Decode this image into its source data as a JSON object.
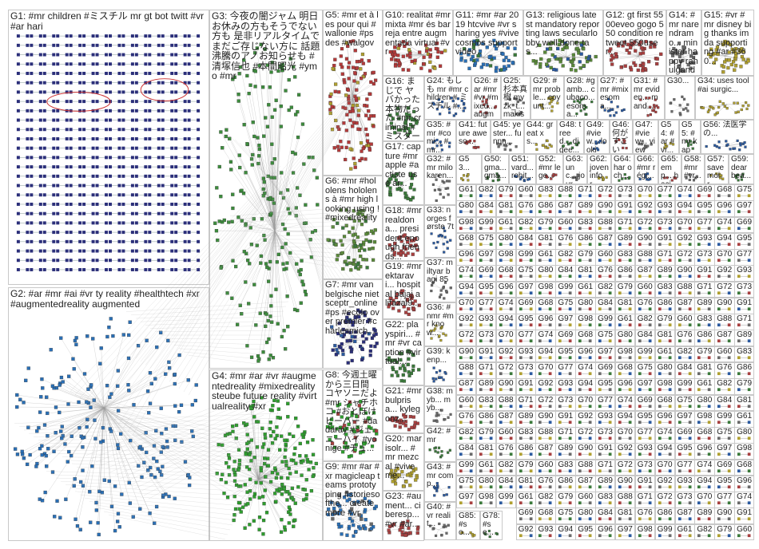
{
  "colors": {
    "g1": "#2b2f7a",
    "g2": "#2a6fb5",
    "g3": "#3d8c3d",
    "g4": "#2e9e2e",
    "g5": "#b33a3a",
    "g6": "#5a8a3a",
    "edge": "#9a9a9a",
    "mixed": [
      "#3b7a3b",
      "#2b5aa0",
      "#a84040",
      "#6a6a6a",
      "#b0a030"
    ]
  },
  "groups": [
    {
      "id": "G1",
      "label": "G1: #mr children #ミスチル mr gt bot twitt #vr #ar hari"
    },
    {
      "id": "G2",
      "label": "G2: #ar #mr #ai #vr ty reality #healthtech #xr #augmentedreality augmented"
    },
    {
      "id": "G3",
      "label": "G3: 今夜の闇ジャム 明日お休みの方もそうでない方も 是非リアルタイムでまだご存じない方に 話題沸騰のアノお知らせも #清塚信也 #本間昭光 #ymo #mr"
    },
    {
      "id": "G4",
      "label": "G4: #mr #ar #vr #augmentedreality #mixedreality steube future reality #virtualreality #xr"
    },
    {
      "id": "G5",
      "label": "G5: #mr et à les pour qui #wallonie #ps des #walgov"
    },
    {
      "id": "G6",
      "label": "G6: #mr #hololens hololens à #mr high looking using ! #mixedreality"
    },
    {
      "id": "G7",
      "label": "G7: #mr van belgische niet sceptr_online #ps #ecolo over premier #charlesmich..."
    },
    {
      "id": "G8",
      "label": "G8: 今週土曜から三日間 コヤソニだよ #mr シャチホコ #おとぼけビーバー #dadaray #ジェニーハイ #yonige #チュ..."
    },
    {
      "id": "G9",
      "label": "G9: #mr #ar #xr magicleap teams prototyping #storiesofthe... create more #vr"
    },
    {
      "id": "G10",
      "label": "G10: realitat #mr mixta #mr és barreja entre augmentada virtual #vr"
    },
    {
      "id": "G11",
      "label": "G11: #mr #ar 2019 htcvive #vr sharing yes #vivecosmos support video"
    },
    {
      "id": "G13",
      "label": "G13: religious latest mandatory reporting laws secularlobby well done tas..."
    },
    {
      "id": "G12",
      "label": "G12: gt first 5500eveo gogo 550 condition retweet 550user..."
    },
    {
      "id": "G14",
      "label": "G14: #mr narendramo... minister happy rahulgandhi u prime..."
    },
    {
      "id": "G15",
      "label": "G15: #vr #mr disney big thanks imda supporting #ar #360..."
    },
    {
      "id": "G16",
      "label": "G16: まじで ヤバかった 本物だった #mr criminal #ミスターク..."
    },
    {
      "id": "G24",
      "label": "G24: もしも mr #mr children # ミスチル #..."
    },
    {
      "id": "G26",
      "label": "G26: #ar #mr #vr #mixed... augme..."
    },
    {
      "id": "G25",
      "label": "G25: 杉本真樹 myzk_t... makisu..."
    },
    {
      "id": "G29",
      "label": "G29: #mr proble... coyunt..."
    },
    {
      "id": "G28",
      "label": "G28: #gamb... cubaco... esoma..."
    },
    {
      "id": "G27",
      "label": "G27: #mr #mix esoma..."
    },
    {
      "id": "G31",
      "label": "G31: #mr eviden... mand..."
    },
    {
      "id": "G30",
      "label": "G30..."
    },
    {
      "id": "G34",
      "label": "G34: uses tool #ai surgic..."
    },
    {
      "id": "G17",
      "label": "G17: capture #mr apple #actiste use ar..."
    },
    {
      "id": "G35",
      "label": "G35: #mr #comi... #mr..."
    },
    {
      "id": "G41",
      "label": "G41: future aweso..."
    },
    {
      "id": "G45",
      "label": "G45: yester... funnn..."
    },
    {
      "id": "G44",
      "label": "G44: great x s..."
    },
    {
      "id": "G48",
      "label": "G48: treed... djgee..."
    },
    {
      "id": "G49",
      "label": "G49: #view... lookin..."
    },
    {
      "id": "G46",
      "label": "G46: 何がすごいっ..."
    },
    {
      "id": "G47",
      "label": "G47: #view... viewc..."
    },
    {
      "id": "G54",
      "label": "G54: #ar #vr..."
    },
    {
      "id": "G55",
      "label": "G55: #mr kaps..."
    },
    {
      "id": "G56",
      "label": "G56: 法医学の..."
    },
    {
      "id": "G18",
      "label": "G18: #mr realdona... president enough friends..."
    },
    {
      "id": "G32",
      "label": "G32: #mr milo karen..."
    },
    {
      "id": "G53",
      "label": "G53..."
    },
    {
      "id": "G50",
      "label": "G50: gma... gma..."
    },
    {
      "id": "G51",
      "label": "G51: vard... rohit..."
    },
    {
      "id": "G52",
      "label": "G52: #mr lege..."
    },
    {
      "id": "G63",
      "label": "G63: unc... jour..."
    },
    {
      "id": "G62",
      "label": "G62: joven infor..."
    },
    {
      "id": "G64",
      "label": "G64: har och..."
    },
    {
      "id": "G66",
      "label": "G66: #mr régi..."
    },
    {
      "id": "G65",
      "label": "G65: emp... haci..."
    },
    {
      "id": "G58",
      "label": "G58: #mr #vr..."
    },
    {
      "id": "G57",
      "label": "G57: save moir..."
    },
    {
      "id": "G59",
      "label": "G59: dear bea..."
    },
    {
      "id": "G33",
      "label": "G33: norges første 7t"
    },
    {
      "id": "G19",
      "label": "G19: #mr ektaravi... hospital bajaj alifazal9..."
    },
    {
      "id": "G37",
      "label": "G37: miltyar bagi 85"
    },
    {
      "id": "G36",
      "label": "G36: #nmr #mr know..."
    },
    {
      "id": "G22",
      "label": "G22: playspiri... #mr #vr caption #virtual..."
    },
    {
      "id": "G39",
      "label": "G39: kenp..."
    },
    {
      "id": "G21",
      "label": "G21: #mr bulprisa... kylegonz..."
    },
    {
      "id": "G38",
      "label": "G38: myb... myb..."
    },
    {
      "id": "G20",
      "label": "G20: marisolr... #mr mezcal #viveme..."
    },
    {
      "id": "G42",
      "label": "G42: #mr"
    },
    {
      "id": "G43",
      "label": "G43: #mr comp..."
    },
    {
      "id": "G23",
      "label": "G23: #aument... ciberesp... #vr #ar..."
    },
    {
      "id": "G40",
      "label": "G40: #vr realit..."
    },
    {
      "id": "G85",
      "label": "G85: #so..."
    },
    {
      "id": "G78",
      "label": "G78: #se..."
    }
  ],
  "small_group_labels": [
    "G61",
    "G82",
    "G79",
    "G60",
    "G83",
    "G88",
    "G71",
    "G72",
    "G73",
    "G70",
    "G77",
    "G74",
    "G69",
    "G68",
    "G75",
    "G80",
    "G84",
    "G81",
    "G76",
    "G86",
    "G87",
    "G89",
    "G90",
    "G91",
    "G92",
    "G93",
    "G94",
    "G95",
    "G96",
    "G97",
    "G98",
    "G99"
  ]
}
